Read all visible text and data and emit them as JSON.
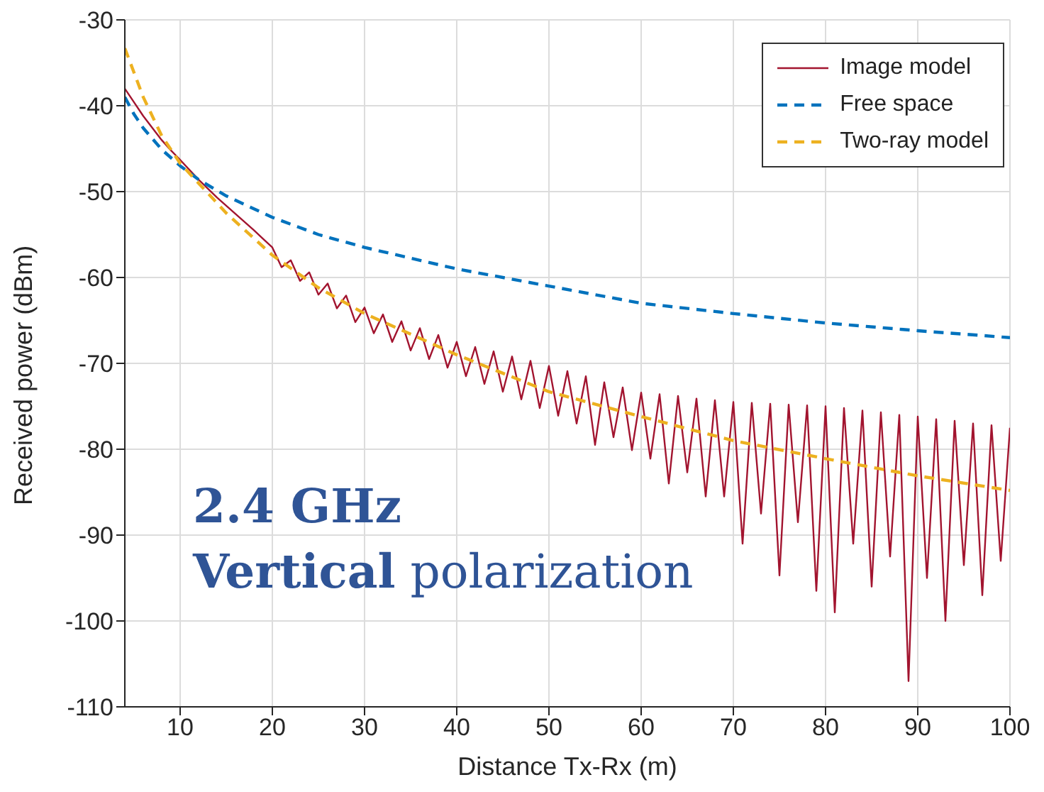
{
  "chart_data": {
    "type": "line",
    "xlabel": "Distance Tx-Rx (m)",
    "ylabel": "Received power (dBm)",
    "xlim": [
      4,
      100
    ],
    "xticks": [
      10,
      20,
      30,
      40,
      50,
      60,
      70,
      80,
      90,
      100
    ],
    "ylim": [
      -110,
      -30
    ],
    "yticks": [
      -110,
      -100,
      -90,
      -80,
      -70,
      -60,
      -50,
      -40,
      -30
    ],
    "grid": true,
    "legend": "top right",
    "marker": "none",
    "annotations": [
      "2.4 GHz",
      "Vertical polarization"
    ],
    "series": [
      {
        "name": "Image model",
        "color": "#a2142f",
        "line_style": "solid",
        "x": [
          4,
          5,
          6,
          7,
          8,
          9,
          10,
          12,
          14,
          16,
          18,
          19,
          20,
          21,
          22,
          23,
          24,
          25,
          26,
          27,
          28,
          29,
          30,
          31,
          32,
          33,
          34,
          35,
          36,
          37,
          38,
          39,
          40,
          41,
          42,
          43,
          44,
          45,
          46,
          47,
          48,
          49,
          50,
          51,
          52,
          53,
          54,
          55,
          56,
          57,
          58,
          59,
          60,
          61,
          62,
          63,
          64,
          65,
          66,
          67,
          68,
          69,
          70,
          71,
          72,
          73,
          74,
          75,
          76,
          77,
          78,
          79,
          80,
          81,
          82,
          83,
          84,
          85,
          86,
          87,
          88,
          89,
          90,
          91,
          92,
          93,
          94,
          95,
          96,
          97,
          98,
          99,
          100
        ],
        "values": [
          -38,
          -39.6,
          -41.2,
          -42.6,
          -44,
          -45.2,
          -46.3,
          -48.6,
          -50.7,
          -52.6,
          -54.5,
          -55.5,
          -56.5,
          -58.8,
          -58,
          -60.4,
          -59.4,
          -62,
          -60.7,
          -63.6,
          -62.1,
          -65.2,
          -63.5,
          -66.5,
          -64.3,
          -67.5,
          -65.1,
          -68.5,
          -65.9,
          -69.5,
          -66.7,
          -70.5,
          -67.5,
          -71.5,
          -68.1,
          -72.4,
          -68.6,
          -73.3,
          -69.2,
          -74.2,
          -69.7,
          -75.2,
          -70.3,
          -76.1,
          -70.9,
          -77,
          -71.5,
          -79.5,
          -72.2,
          -78.6,
          -72.8,
          -80.1,
          -73.4,
          -81.1,
          -73.6,
          -84,
          -73.8,
          -82.7,
          -74.1,
          -85.5,
          -74.3,
          -85.5,
          -74.5,
          -91,
          -74.6,
          -87.5,
          -74.7,
          -94.7,
          -74.8,
          -88.5,
          -74.9,
          -96.5,
          -75,
          -99,
          -75.2,
          -91,
          -75.5,
          -96,
          -75.7,
          -92.5,
          -76,
          -107,
          -76.2,
          -95,
          -76.5,
          -100,
          -76.7,
          -93.5,
          -77,
          -97,
          -77.2,
          -93,
          -77.5
        ]
      },
      {
        "name": "Free space",
        "color": "#0072bd",
        "line_style": "dashed",
        "x": [
          4,
          5,
          6,
          8,
          10,
          12,
          15,
          20,
          25,
          30,
          40,
          50,
          60,
          70,
          80,
          90,
          100
        ],
        "values": [
          -39,
          -41,
          -42.6,
          -45.1,
          -47,
          -48.6,
          -50.5,
          -53,
          -55,
          -56.5,
          -59,
          -61,
          -63,
          -64.2,
          -65.3,
          -66.2,
          -67
        ]
      },
      {
        "name": "Two-ray model",
        "color": "#edb120",
        "line_style": "dashed",
        "x": [
          4,
          6,
          8,
          10,
          15,
          20,
          25,
          30,
          40,
          50,
          60,
          70,
          80,
          90,
          100
        ],
        "values": [
          -33.3,
          -39,
          -43.5,
          -46.7,
          -52.5,
          -57.4,
          -61.2,
          -64.2,
          -69,
          -73.3,
          -76.2,
          -79,
          -81.1,
          -83.1,
          -84.8
        ]
      }
    ]
  }
}
